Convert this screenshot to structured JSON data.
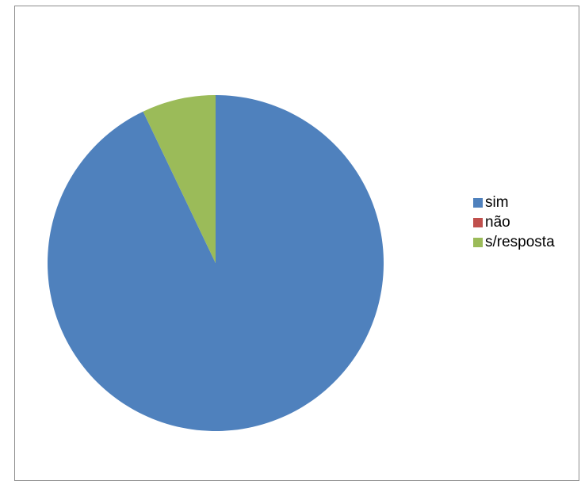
{
  "chart_data": {
    "type": "pie",
    "title": "",
    "categories": [
      "sim",
      "não",
      "s/resposta"
    ],
    "values": [
      92.9,
      0,
      7.1
    ],
    "colors": [
      "#4f81bd",
      "#c0504d",
      "#9bbb59"
    ],
    "start_angle_deg": 0,
    "direction": "clockwise",
    "legend_position": "right"
  }
}
